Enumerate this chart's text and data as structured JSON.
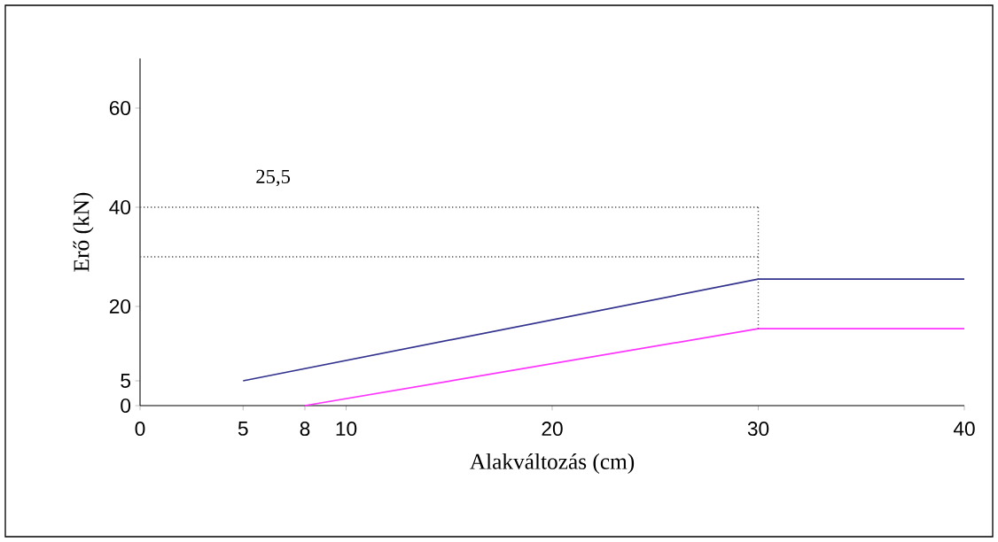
{
  "chart_data": {
    "type": "line",
    "xlabel": "Alakváltozás (cm)",
    "ylabel": "Erő (kN)",
    "xlim": [
      0,
      40
    ],
    "ylim": [
      0,
      70
    ],
    "xticks": [
      0,
      {
        "value": 5,
        "label": "5"
      },
      {
        "value": 8,
        "label": "8"
      },
      10,
      20,
      30,
      40
    ],
    "yticks": [
      0,
      {
        "value": 5,
        "label": "5"
      },
      20,
      40,
      60
    ],
    "marker": "none",
    "grid": false,
    "annotations": [
      "25,5"
    ],
    "series": [
      {
        "color": "#33338f",
        "x": [
          5,
          30,
          40
        ],
        "values": [
          5,
          25.5,
          25.5
        ]
      },
      {
        "color": "#ff33ff",
        "x": [
          8,
          30,
          40
        ],
        "values": [
          0,
          15.5,
          15.5
        ]
      },
      {
        "color": "#555555",
        "line_style": "dotted",
        "x": [
          0,
          30
        ],
        "values": [
          40,
          40
        ]
      },
      {
        "color": "#555555",
        "line_style": "dotted",
        "x": [
          0,
          30
        ],
        "values": [
          30,
          30
        ]
      },
      {
        "color": "#555555",
        "line_style": "dotted",
        "x": [
          30,
          30
        ],
        "values": [
          40,
          15.5
        ]
      }
    ]
  }
}
